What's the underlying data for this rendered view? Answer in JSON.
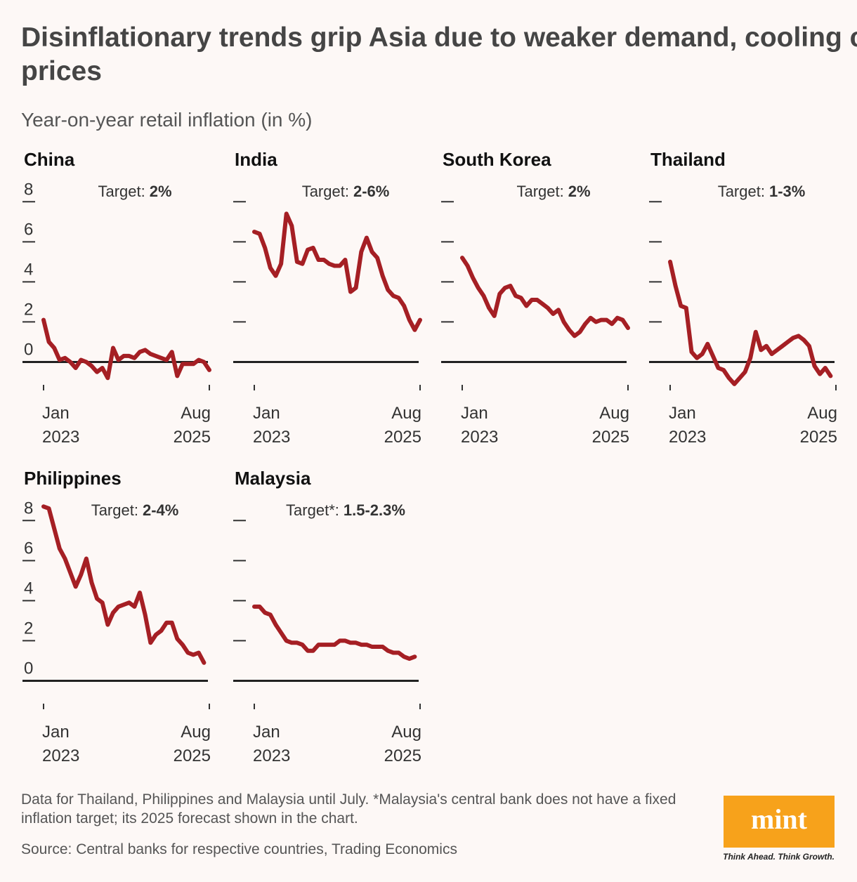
{
  "title": "Disinflationary trends grip Asia due to weaker demand, cooling commodity prices",
  "subtitle": "Year-on-year retail inflation (in %)",
  "note": "Data for Thailand, Philippines and Malaysia until July. *Malaysia's central bank does not have a fixed inflation target; its 2025 forecast shown in the chart.",
  "source": "Source: Central banks for respective countries, Trading Economics",
  "logo": "mint",
  "tagline": "Think Ahead. Think Growth.",
  "chart_data": [
    {
      "type": "line",
      "title": "China",
      "target_label": "Target:",
      "target_value": "2%",
      "color": "#a51f24",
      "show_ytick_labels": true,
      "x": [
        "2023-01",
        "2023-02",
        "2023-03",
        "2023-04",
        "2023-05",
        "2023-06",
        "2023-07",
        "2023-08",
        "2023-09",
        "2023-10",
        "2023-11",
        "2023-12",
        "2024-01",
        "2024-02",
        "2024-03",
        "2024-04",
        "2024-05",
        "2024-06",
        "2024-07",
        "2024-08",
        "2024-09",
        "2024-10",
        "2024-11",
        "2024-12",
        "2025-01",
        "2025-02",
        "2025-03",
        "2025-04",
        "2025-05",
        "2025-06",
        "2025-07",
        "2025-08"
      ],
      "values": [
        2.1,
        1.0,
        0.7,
        0.1,
        0.2,
        0.0,
        -0.3,
        0.1,
        0.0,
        -0.2,
        -0.5,
        -0.3,
        -0.8,
        0.7,
        0.1,
        0.3,
        0.3,
        0.2,
        0.5,
        0.6,
        0.4,
        0.3,
        0.2,
        0.1,
        0.5,
        -0.7,
        -0.1,
        -0.1,
        -0.1,
        0.1,
        0.0,
        -0.4
      ],
      "xlim": [
        "2023-01",
        "2025-08"
      ],
      "xticks": [
        {
          "value": "2023-01",
          "label": "Jan 2023"
        },
        {
          "value": "2025-08",
          "label": "Aug 2025"
        }
      ],
      "ylim": [
        -1,
        8.5
      ],
      "yticks": [
        0,
        2,
        4,
        6,
        8
      ]
    },
    {
      "type": "line",
      "title": "India",
      "target_label": "Target:",
      "target_value": "2-6%",
      "color": "#a51f24",
      "show_ytick_labels": false,
      "x": [
        "2023-01",
        "2023-02",
        "2023-03",
        "2023-04",
        "2023-05",
        "2023-06",
        "2023-07",
        "2023-08",
        "2023-09",
        "2023-10",
        "2023-11",
        "2023-12",
        "2024-01",
        "2024-02",
        "2024-03",
        "2024-04",
        "2024-05",
        "2024-06",
        "2024-07",
        "2024-08",
        "2024-09",
        "2024-10",
        "2024-11",
        "2024-12",
        "2025-01",
        "2025-02",
        "2025-03",
        "2025-04",
        "2025-05",
        "2025-06",
        "2025-07",
        "2025-08"
      ],
      "values": [
        6.5,
        6.4,
        5.7,
        4.7,
        4.3,
        4.9,
        7.4,
        6.8,
        5.0,
        4.9,
        5.6,
        5.7,
        5.1,
        5.1,
        4.9,
        4.8,
        4.8,
        5.1,
        3.5,
        3.7,
        5.5,
        6.2,
        5.5,
        5.2,
        4.3,
        3.6,
        3.3,
        3.2,
        2.8,
        2.1,
        1.6,
        2.1
      ],
      "xlim": [
        "2023-01",
        "2025-08"
      ],
      "xticks": [
        {
          "value": "2023-01",
          "label": "Jan 2023"
        },
        {
          "value": "2025-08",
          "label": "Aug 2025"
        }
      ],
      "ylim": [
        -1,
        8.5
      ],
      "yticks": [
        0,
        2,
        4,
        6,
        8
      ]
    },
    {
      "type": "line",
      "title": "South Korea",
      "target_label": "Target:",
      "target_value": "2%",
      "color": "#a51f24",
      "show_ytick_labels": false,
      "x": [
        "2023-01",
        "2023-02",
        "2023-03",
        "2023-04",
        "2023-05",
        "2023-06",
        "2023-07",
        "2023-08",
        "2023-09",
        "2023-10",
        "2023-11",
        "2023-12",
        "2024-01",
        "2024-02",
        "2024-03",
        "2024-04",
        "2024-05",
        "2024-06",
        "2024-07",
        "2024-08",
        "2024-09",
        "2024-10",
        "2024-11",
        "2024-12",
        "2025-01",
        "2025-02",
        "2025-03",
        "2025-04",
        "2025-05",
        "2025-06",
        "2025-07",
        "2025-08"
      ],
      "values": [
        5.2,
        4.8,
        4.2,
        3.7,
        3.3,
        2.7,
        2.3,
        3.4,
        3.7,
        3.8,
        3.3,
        3.2,
        2.8,
        3.1,
        3.1,
        2.9,
        2.7,
        2.4,
        2.6,
        2.0,
        1.6,
        1.3,
        1.5,
        1.9,
        2.2,
        2.0,
        2.1,
        2.1,
        1.9,
        2.2,
        2.1,
        1.7
      ],
      "xlim": [
        "2023-01",
        "2025-08"
      ],
      "xticks": [
        {
          "value": "2023-01",
          "label": "Jan 2023"
        },
        {
          "value": "2025-08",
          "label": "Aug 2025"
        }
      ],
      "ylim": [
        -1,
        8.5
      ],
      "yticks": [
        0,
        2,
        4,
        6,
        8
      ]
    },
    {
      "type": "line",
      "title": "Thailand",
      "target_label": "Target:",
      "target_value": "1-3%",
      "color": "#a51f24",
      "show_ytick_labels": false,
      "x": [
        "2023-01",
        "2023-02",
        "2023-03",
        "2023-04",
        "2023-05",
        "2023-06",
        "2023-07",
        "2023-08",
        "2023-09",
        "2023-10",
        "2023-11",
        "2023-12",
        "2024-01",
        "2024-02",
        "2024-03",
        "2024-04",
        "2024-05",
        "2024-06",
        "2024-07",
        "2024-08",
        "2024-09",
        "2024-10",
        "2024-11",
        "2024-12",
        "2025-01",
        "2025-02",
        "2025-03",
        "2025-04",
        "2025-05",
        "2025-06",
        "2025-07"
      ],
      "values": [
        5.0,
        3.8,
        2.8,
        2.7,
        0.5,
        0.2,
        0.4,
        0.9,
        0.3,
        -0.3,
        -0.4,
        -0.8,
        -1.1,
        -0.8,
        -0.5,
        0.2,
        1.5,
        0.6,
        0.8,
        0.4,
        0.6,
        0.8,
        1.0,
        1.2,
        1.3,
        1.1,
        0.8,
        -0.2,
        -0.6,
        -0.3,
        -0.7
      ],
      "xlim": [
        "2023-01",
        "2025-08"
      ],
      "xticks": [
        {
          "value": "2023-01",
          "label": "Jan 2023"
        },
        {
          "value": "2025-08",
          "label": "Aug 2025"
        }
      ],
      "ylim": [
        -1,
        8.5
      ],
      "yticks": [
        0,
        2,
        4,
        6,
        8
      ]
    },
    {
      "type": "line",
      "title": "Philippines",
      "target_label": "Target:",
      "target_value": "2-4%",
      "color": "#a51f24",
      "show_ytick_labels": true,
      "x": [
        "2023-01",
        "2023-02",
        "2023-03",
        "2023-04",
        "2023-05",
        "2023-06",
        "2023-07",
        "2023-08",
        "2023-09",
        "2023-10",
        "2023-11",
        "2023-12",
        "2024-01",
        "2024-02",
        "2024-03",
        "2024-04",
        "2024-05",
        "2024-06",
        "2024-07",
        "2024-08",
        "2024-09",
        "2024-10",
        "2024-11",
        "2024-12",
        "2025-01",
        "2025-02",
        "2025-03",
        "2025-04",
        "2025-05",
        "2025-06",
        "2025-07"
      ],
      "values": [
        8.7,
        8.6,
        7.6,
        6.6,
        6.1,
        5.4,
        4.7,
        5.3,
        6.1,
        4.9,
        4.1,
        3.9,
        2.8,
        3.4,
        3.7,
        3.8,
        3.9,
        3.7,
        4.4,
        3.3,
        1.9,
        2.3,
        2.5,
        2.9,
        2.9,
        2.1,
        1.8,
        1.4,
        1.3,
        1.4,
        0.9
      ],
      "xlim": [
        "2023-01",
        "2025-08"
      ],
      "xticks": [
        {
          "value": "2023-01",
          "label": "Jan 2023"
        },
        {
          "value": "2025-08",
          "label": "Aug 2025"
        }
      ],
      "ylim": [
        -1,
        8.5
      ],
      "yticks": [
        0,
        2,
        4,
        6,
        8
      ]
    },
    {
      "type": "line",
      "title": "Malaysia",
      "target_label": "Target*:",
      "target_value": "1.5-2.3%",
      "color": "#a51f24",
      "show_ytick_labels": false,
      "x": [
        "2023-01",
        "2023-02",
        "2023-03",
        "2023-04",
        "2023-05",
        "2023-06",
        "2023-07",
        "2023-08",
        "2023-09",
        "2023-10",
        "2023-11",
        "2023-12",
        "2024-01",
        "2024-02",
        "2024-03",
        "2024-04",
        "2024-05",
        "2024-06",
        "2024-07",
        "2024-08",
        "2024-09",
        "2024-10",
        "2024-11",
        "2024-12",
        "2025-01",
        "2025-02",
        "2025-03",
        "2025-04",
        "2025-05",
        "2025-06",
        "2025-07"
      ],
      "values": [
        3.7,
        3.7,
        3.4,
        3.3,
        2.8,
        2.4,
        2.0,
        1.9,
        1.9,
        1.8,
        1.5,
        1.5,
        1.8,
        1.8,
        1.8,
        1.8,
        2.0,
        2.0,
        1.9,
        1.9,
        1.8,
        1.8,
        1.7,
        1.7,
        1.7,
        1.5,
        1.4,
        1.4,
        1.2,
        1.1,
        1.2
      ],
      "xlim": [
        "2023-01",
        "2025-08"
      ],
      "xticks": [
        {
          "value": "2023-01",
          "label": "Jan 2023"
        },
        {
          "value": "2025-08",
          "label": "Aug 2025"
        }
      ],
      "ylim": [
        -1,
        8.5
      ],
      "yticks": [
        0,
        2,
        4,
        6,
        8
      ]
    }
  ]
}
